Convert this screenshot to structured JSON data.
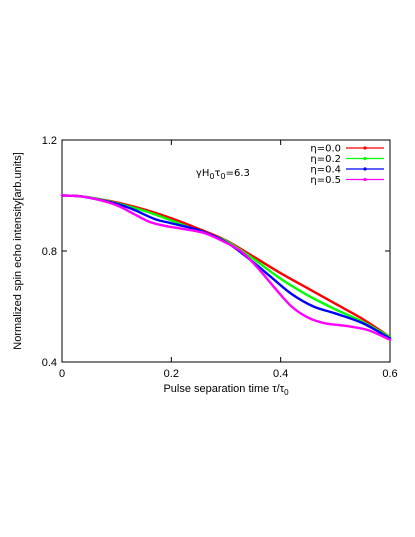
{
  "chart_data": {
    "type": "line",
    "title": "",
    "xlabel_main": "Pulse separation time τ/τ",
    "xlabel_sub": "0",
    "ylabel": "Normalized spin echo intensity[arb.units]",
    "xlim": [
      0,
      0.6
    ],
    "ylim": [
      0.4,
      1.2
    ],
    "x_ticks": [
      0,
      0.2,
      0.4,
      0.6
    ],
    "x_tick_labels": [
      "0",
      "0.2",
      "0.4",
      "0.6"
    ],
    "y_ticks": [
      0.4,
      0.8,
      1.2
    ],
    "y_tick_labels": [
      "0.4",
      "0.8",
      "1.2"
    ],
    "grid": false,
    "legend_position": "top-right",
    "annotation": {
      "parts": [
        {
          "text": "γH",
          "sub": false
        },
        {
          "text": "0",
          "sub": true
        },
        {
          "text": "τ",
          "sub": false
        },
        {
          "text": "0",
          "sub": true
        },
        {
          "text": "=6.3",
          "sub": false
        }
      ],
      "x": 0.245,
      "y": 1.07
    },
    "series": [
      {
        "name": "η=0.0",
        "color": "#ff0000",
        "x": [
          0,
          0.03,
          0.06,
          0.1,
          0.15,
          0.2,
          0.25,
          0.3,
          0.35,
          0.4,
          0.45,
          0.5,
          0.55,
          0.6
        ],
        "y": [
          1.0,
          0.998,
          0.99,
          0.975,
          0.95,
          0.918,
          0.88,
          0.838,
          0.78,
          0.72,
          0.665,
          0.61,
          0.555,
          0.49
        ]
      },
      {
        "name": "η=0.2",
        "color": "#00ff00",
        "x": [
          0,
          0.03,
          0.06,
          0.1,
          0.15,
          0.2,
          0.25,
          0.3,
          0.35,
          0.4,
          0.45,
          0.5,
          0.55,
          0.6
        ],
        "y": [
          1.0,
          0.998,
          0.99,
          0.972,
          0.945,
          0.91,
          0.872,
          0.836,
          0.772,
          0.7,
          0.64,
          0.59,
          0.545,
          0.49
        ]
      },
      {
        "name": "η=0.4",
        "color": "#0000ff",
        "x": [
          0,
          0.03,
          0.06,
          0.1,
          0.13,
          0.17,
          0.2,
          0.25,
          0.3,
          0.34,
          0.38,
          0.42,
          0.46,
          0.5,
          0.55,
          0.6
        ],
        "y": [
          1.0,
          0.998,
          0.988,
          0.97,
          0.95,
          0.915,
          0.9,
          0.875,
          0.832,
          0.775,
          0.71,
          0.645,
          0.6,
          0.575,
          0.54,
          0.485
        ]
      },
      {
        "name": "η=0.5",
        "color": "#ff00ff",
        "x": [
          0,
          0.03,
          0.06,
          0.1,
          0.13,
          0.16,
          0.19,
          0.22,
          0.26,
          0.3,
          0.33,
          0.36,
          0.39,
          0.42,
          0.45,
          0.48,
          0.52,
          0.56,
          0.6
        ],
        "y": [
          1.0,
          0.998,
          0.988,
          0.965,
          0.935,
          0.905,
          0.89,
          0.88,
          0.865,
          0.83,
          0.795,
          0.735,
          0.665,
          0.6,
          0.56,
          0.54,
          0.53,
          0.515,
          0.48
        ]
      }
    ]
  }
}
